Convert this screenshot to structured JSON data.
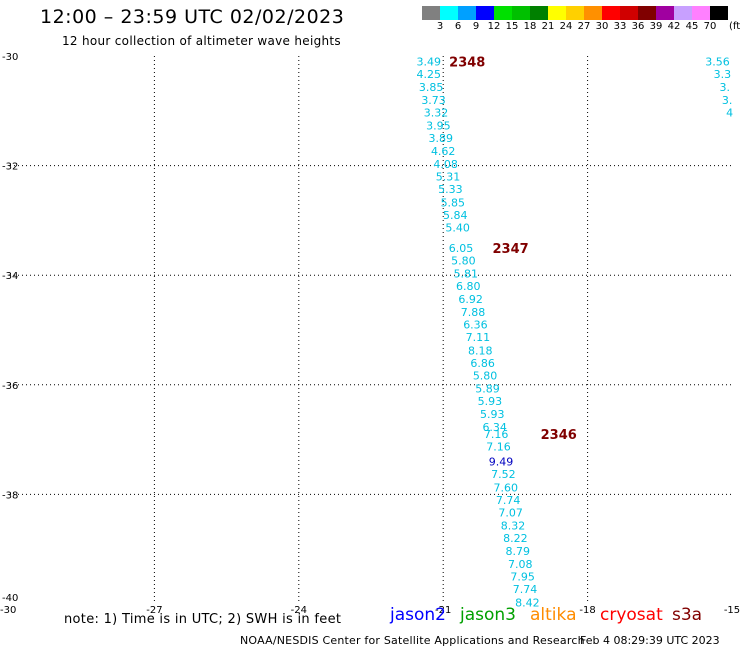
{
  "header": {
    "title": "12:00 – 23:59 UTC 02/02/2023",
    "subtitle": "12 hour collection of altimeter wave heights"
  },
  "colorbar": {
    "unit": "(ft)",
    "bins": [
      {
        "label": "3",
        "color": "#808080"
      },
      {
        "label": "6",
        "color": "#00ffff"
      },
      {
        "label": "9",
        "color": "#00a0ff"
      },
      {
        "label": "12",
        "color": "#0000ff"
      },
      {
        "label": "15",
        "color": "#00e000"
      },
      {
        "label": "18",
        "color": "#00c000"
      },
      {
        "label": "21",
        "color": "#008000"
      },
      {
        "label": "24",
        "color": "#ffff00"
      },
      {
        "label": "27",
        "color": "#ffd000"
      },
      {
        "label": "30",
        "color": "#ff9000"
      },
      {
        "label": "33",
        "color": "#ff0000"
      },
      {
        "label": "36",
        "color": "#d00000"
      },
      {
        "label": "39",
        "color": "#800000"
      },
      {
        "label": "42",
        "color": "#a000a0"
      },
      {
        "label": "45",
        "color": "#c8a0ff"
      },
      {
        "label": "70",
        "color": "#ff80ff"
      },
      {
        "label": "",
        "color": "#000000"
      }
    ]
  },
  "note": "note: 1) Time is in UTC; 2) SWH is in feet",
  "satellites": [
    {
      "name": "jason2",
      "color": "#0000ff"
    },
    {
      "name": "jason3",
      "color": "#00a000"
    },
    {
      "name": "altika",
      "color": "#ff8c00"
    },
    {
      "name": "cryosat",
      "color": "#ff0000"
    },
    {
      "name": "s3a",
      "color": "#800000"
    }
  ],
  "footer": {
    "credit": "NOAA/NESDIS Center for Satellite Applications and Research",
    "timestamp": "Feb  4 08:29:39 UTC 2023"
  },
  "chart_data": {
    "type": "scatter",
    "xlim": [
      -30,
      -15
    ],
    "ylim": [
      -40,
      -30
    ],
    "x_ticks": [
      {
        "v": -27,
        "label": "-27"
      },
      {
        "v": -24,
        "label": "-24"
      },
      {
        "v": -21,
        "label": "-21"
      },
      {
        "v": -18,
        "label": "-18"
      },
      {
        "v": -15,
        "label": "-15"
      }
    ],
    "x_origin_label": "-30",
    "y_ticks": [
      {
        "v": -30,
        "label": "-30"
      },
      {
        "v": -32,
        "label": "-32"
      },
      {
        "v": -34,
        "label": "-34"
      },
      {
        "v": -36,
        "label": "-36"
      },
      {
        "v": -38,
        "label": "-38"
      },
      {
        "v": -40,
        "label": "-40"
      }
    ],
    "grid": true,
    "grid_x": [
      -27,
      -24,
      -21,
      -18
    ],
    "grid_y": [
      -32,
      -34,
      -36,
      -38
    ],
    "default_color": "#00c0e0",
    "points": [
      {
        "lon": -21.3,
        "lat": -30.1,
        "v": "3.49"
      },
      {
        "lon": -21.3,
        "lat": -30.33,
        "v": "4.25"
      },
      {
        "lon": -21.25,
        "lat": -30.57,
        "v": "3.85"
      },
      {
        "lon": -21.2,
        "lat": -30.8,
        "v": "3.73"
      },
      {
        "lon": -21.15,
        "lat": -31.03,
        "v": "3.32"
      },
      {
        "lon": -21.1,
        "lat": -31.27,
        "v": "3.95"
      },
      {
        "lon": -21.05,
        "lat": -31.5,
        "v": "3.89"
      },
      {
        "lon": -21.0,
        "lat": -31.73,
        "v": "4.62"
      },
      {
        "lon": -20.95,
        "lat": -31.97,
        "v": "4.08"
      },
      {
        "lon": -20.9,
        "lat": -32.2,
        "v": "5.31"
      },
      {
        "lon": -20.85,
        "lat": -32.43,
        "v": "5.33"
      },
      {
        "lon": -20.8,
        "lat": -32.67,
        "v": "5.85"
      },
      {
        "lon": -20.75,
        "lat": -32.9,
        "v": "5.84"
      },
      {
        "lon": -20.7,
        "lat": -33.13,
        "v": "5.40"
      },
      {
        "lon": -20.63,
        "lat": -33.5,
        "v": "6.05"
      },
      {
        "lon": -20.58,
        "lat": -33.73,
        "v": "5.80"
      },
      {
        "lon": -20.53,
        "lat": -33.97,
        "v": "5.81"
      },
      {
        "lon": -20.48,
        "lat": -34.2,
        "v": "6.80"
      },
      {
        "lon": -20.43,
        "lat": -34.43,
        "v": "6.92"
      },
      {
        "lon": -20.38,
        "lat": -34.67,
        "v": "7.88"
      },
      {
        "lon": -20.33,
        "lat": -34.9,
        "v": "6.36"
      },
      {
        "lon": -20.28,
        "lat": -35.13,
        "v": "7.11"
      },
      {
        "lon": -20.23,
        "lat": -35.37,
        "v": "8.18"
      },
      {
        "lon": -20.18,
        "lat": -35.6,
        "v": "6.86"
      },
      {
        "lon": -20.13,
        "lat": -35.83,
        "v": "5.80"
      },
      {
        "lon": -20.08,
        "lat": -36.07,
        "v": "5.89"
      },
      {
        "lon": -20.03,
        "lat": -36.3,
        "v": "5.93"
      },
      {
        "lon": -19.98,
        "lat": -36.53,
        "v": "5.93"
      },
      {
        "lon": -19.93,
        "lat": -36.77,
        "v": "6.34"
      },
      {
        "lon": -19.9,
        "lat": -36.9,
        "v": "7.16"
      },
      {
        "lon": -19.85,
        "lat": -37.13,
        "v": "7.16"
      },
      {
        "lon": -19.8,
        "lat": -37.4,
        "v": "9.49",
        "color": "#0000c0"
      },
      {
        "lon": -19.75,
        "lat": -37.63,
        "v": "7.52"
      },
      {
        "lon": -19.7,
        "lat": -37.87,
        "v": "7.60"
      },
      {
        "lon": -19.65,
        "lat": -38.1,
        "v": "7.74"
      },
      {
        "lon": -19.6,
        "lat": -38.33,
        "v": "7.07"
      },
      {
        "lon": -19.55,
        "lat": -38.57,
        "v": "8.32"
      },
      {
        "lon": -19.5,
        "lat": -38.8,
        "v": "8.22"
      },
      {
        "lon": -19.45,
        "lat": -39.03,
        "v": "8.79"
      },
      {
        "lon": -19.4,
        "lat": -39.27,
        "v": "7.08"
      },
      {
        "lon": -19.35,
        "lat": -39.5,
        "v": "7.95"
      },
      {
        "lon": -19.3,
        "lat": -39.73,
        "v": "7.74"
      },
      {
        "lon": -19.25,
        "lat": -39.97,
        "v": "8.42"
      },
      {
        "lon": -15.3,
        "lat": -30.1,
        "v": "3.56"
      },
      {
        "lon": -15.2,
        "lat": -30.33,
        "v": "3.3"
      },
      {
        "lon": -15.15,
        "lat": -30.57,
        "v": "3."
      },
      {
        "lon": -15.1,
        "lat": -30.8,
        "v": "3."
      },
      {
        "lon": -15.05,
        "lat": -31.03,
        "v": "4"
      }
    ],
    "time_labels": [
      {
        "lon": -20.5,
        "lat": -30.1,
        "text": "2348"
      },
      {
        "lon": -19.6,
        "lat": -33.5,
        "text": "2347"
      },
      {
        "lon": -18.6,
        "lat": -36.9,
        "text": "2346"
      }
    ]
  }
}
